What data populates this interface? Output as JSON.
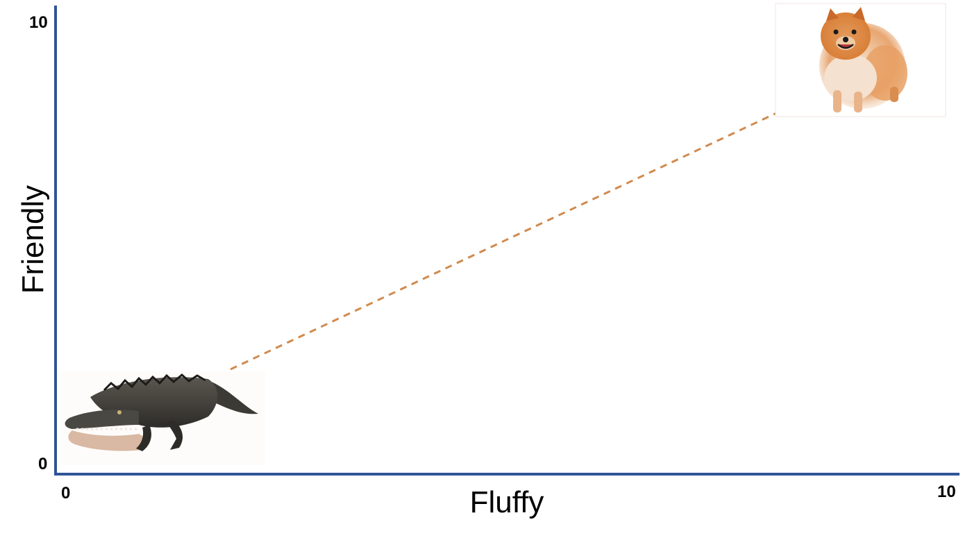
{
  "chart_data": {
    "type": "scatter",
    "title": "",
    "xlabel": "Fluffy",
    "ylabel": "Friendly",
    "xlim": [
      0,
      10
    ],
    "ylim": [
      0,
      10
    ],
    "x_ticks": [
      "0",
      "10"
    ],
    "y_ticks": [
      "0",
      "10"
    ],
    "grid": false,
    "legend": "none",
    "points": [
      {
        "x": 1.0,
        "y": 1.0,
        "marker": "alligator-photo"
      },
      {
        "x": 8.0,
        "y": 9.2,
        "marker": "pomeranian-dog-photo"
      }
    ],
    "connector": {
      "style": "dashed",
      "color": "#d08a4e"
    },
    "colors": {
      "axis": "#2f5597",
      "connector": "#d08a4e"
    }
  }
}
